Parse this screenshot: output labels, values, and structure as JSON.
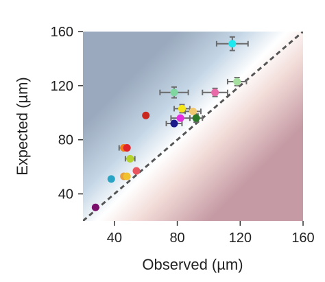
{
  "chart_data": {
    "type": "scatter",
    "title": "",
    "xlabel": "Observed (µm)",
    "ylabel": "Expected (µm)",
    "xlim": [
      20,
      160
    ],
    "ylim": [
      20,
      160
    ],
    "xticks": [
      40,
      80,
      120,
      160
    ],
    "yticks": [
      40,
      80,
      120,
      160
    ],
    "grid": false,
    "legend": "none",
    "reference_line": {
      "style": "dashed",
      "slope": 1,
      "intercept": 0,
      "color": "#555555"
    },
    "background": {
      "type": "gradient",
      "above_diagonal_color": "#9aa9bd",
      "near_diagonal_color": "#ffffff",
      "below_diagonal_color": "#c59aa4"
    },
    "points": [
      {
        "x": 28,
        "y": 30,
        "color": "#7a0f6b"
      },
      {
        "x": 38,
        "y": 51,
        "color": "#2aa3c4"
      },
      {
        "x": 46,
        "y": 53,
        "color": "#e8a040"
      },
      {
        "x": 48,
        "y": 53,
        "color": "#f0c230"
      },
      {
        "x": 54,
        "y": 57,
        "color": "#e8555e"
      },
      {
        "x": 46,
        "y": 74,
        "color": "#f07d1a",
        "xerr": 3
      },
      {
        "x": 48,
        "y": 74,
        "color": "#e0242a"
      },
      {
        "x": 50,
        "y": 66,
        "color": "#b5d22d",
        "xerr": 3
      },
      {
        "x": 60,
        "y": 98,
        "color": "#c8281e"
      },
      {
        "x": 78,
        "y": 92,
        "color": "#1a1a8a",
        "xerr": 5
      },
      {
        "x": 78,
        "y": 115,
        "color": "#7fd6a0",
        "xerr": 9,
        "yerr": 4
      },
      {
        "x": 82,
        "y": 96,
        "color": "#e62ee0",
        "xerr": 6
      },
      {
        "x": 83,
        "y": 103,
        "color": "#f5e61a",
        "xerr": 5,
        "yerr": 3
      },
      {
        "x": 90,
        "y": 101,
        "color": "#f0c870",
        "xerr": 5
      },
      {
        "x": 92,
        "y": 96,
        "color": "#2a7a2a",
        "xerr": 4,
        "yerr": 3
      },
      {
        "x": 104,
        "y": 115,
        "color": "#e86aa8",
        "xerr": 8,
        "yerr": 3
      },
      {
        "x": 115,
        "y": 151,
        "color": "#1ee8f0",
        "xerr": 10,
        "yerr": 5
      },
      {
        "x": 118,
        "y": 123,
        "color": "#a6e0a0",
        "xerr": 6,
        "yerr": 3
      }
    ]
  }
}
